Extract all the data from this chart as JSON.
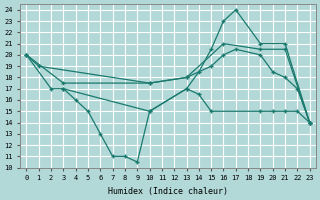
{
  "background_color": "#b2d8d8",
  "grid_color": "#ffffff",
  "line_color": "#1a7a6e",
  "marker": "+",
  "xlabel": "Humidex (Indice chaleur)",
  "xlim": [
    -0.5,
    23.5
  ],
  "ylim": [
    10,
    24.5
  ],
  "yticks": [
    10,
    11,
    12,
    13,
    14,
    15,
    16,
    17,
    18,
    19,
    20,
    21,
    22,
    23,
    24
  ],
  "xticks": [
    0,
    1,
    2,
    3,
    4,
    5,
    6,
    7,
    8,
    9,
    10,
    11,
    12,
    13,
    14,
    15,
    16,
    17,
    18,
    19,
    20,
    21,
    22,
    23
  ],
  "series": [
    {
      "x": [
        0,
        1,
        10,
        13,
        15,
        16,
        17,
        19,
        20,
        21,
        22,
        23
      ],
      "y": [
        20,
        19,
        17.5,
        18,
        19,
        20,
        20.5,
        20,
        18.5,
        18,
        17,
        14
      ]
    },
    {
      "x": [
        0,
        2,
        3,
        10,
        13,
        14,
        15,
        16,
        17,
        19,
        21,
        23
      ],
      "y": [
        20,
        17,
        17,
        15,
        17,
        18.5,
        20.5,
        23,
        24,
        21,
        21,
        14
      ]
    },
    {
      "x": [
        3,
        4,
        5,
        6,
        7,
        8,
        9,
        10,
        13,
        14,
        15,
        19,
        20,
        21,
        22,
        23
      ],
      "y": [
        17,
        16,
        15,
        13,
        11,
        11,
        10.5,
        15,
        17,
        16.5,
        15,
        15,
        15,
        15,
        15,
        14
      ]
    },
    {
      "x": [
        0,
        3,
        10,
        13,
        16,
        19,
        21,
        23
      ],
      "y": [
        20,
        17.5,
        17.5,
        18,
        21,
        20.5,
        20.5,
        14
      ]
    }
  ]
}
